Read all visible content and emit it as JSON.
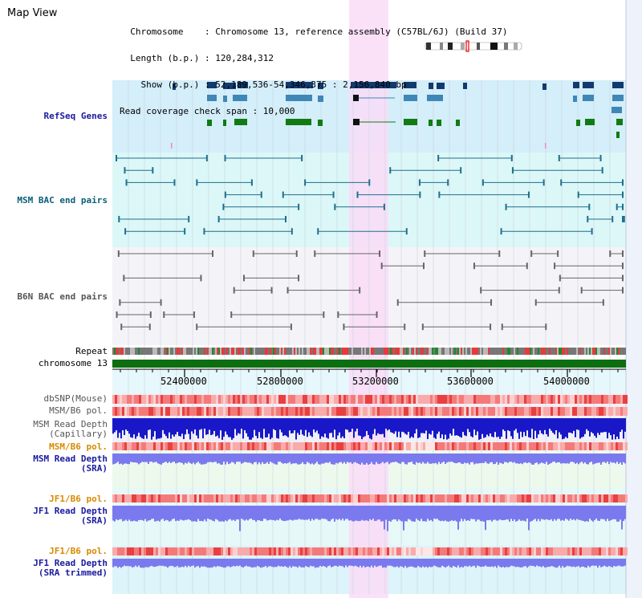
{
  "view": {
    "title": "Map View",
    "info_lines": [
      "  Chromosome    : Chromosome 13, reference assembly (C57BL/6J) (Build 37)",
      "  Length (b.p.) : 120,284,312",
      "    Show (b.p.) : 52,189,536-54,346,375 : 2,156,840 bp",
      "Read coverage check span : 10,000"
    ]
  },
  "tracks": {
    "refseq": "RefSeq Genes",
    "msm_bac": "MSM BAC end pairs",
    "b6n_bac": "B6N BAC end pairs",
    "repeat": "Repeat",
    "chromosome": "chromosome 13",
    "dbsnp": "dbSNP(Mouse)",
    "msm_b6_pol_1": "MSM/B6 pol.",
    "msm_depth_cap_1": "MSM Read Depth",
    "msm_depth_cap_2": "(Capillary)",
    "msm_b6_pol_2": "MSM/B6 pol.",
    "msm_depth_sra_1": "MSM Read Depth",
    "msm_depth_sra_2": "(SRA)",
    "jf1_b6_pol_1": "JF1/B6 pol.",
    "jf1_depth_sra_1": "JF1 Read Depth",
    "jf1_depth_sra_2": "(SRA)",
    "jf1_b6_pol_2": "JF1/B6 pol.",
    "jf1_depth_trim_1": "JF1 Read Depth",
    "jf1_depth_trim_2": "(SRA trimmed)"
  },
  "axis": {
    "ticks": [
      "52400000",
      "52800000",
      "53200000",
      "53600000",
      "54000000"
    ]
  },
  "colors": {
    "refseq_bg": "#d4eefa",
    "msm_bac_bg": "#dcf7f7",
    "b6n_bac_bg": "#f4f4f8",
    "highlight": "#f9dcf7",
    "gene_dark": "#123a6e",
    "gene_mid": "#3f87b6",
    "gene_green": "#117a14",
    "msm_bac": "#1f6f8e",
    "b6n_bac": "#666666",
    "chromosome": "#0c6e10",
    "label_blue": "#1a1aa0",
    "label_teal": "#0a5f7a",
    "label_gray": "#555555",
    "label_orange": "#d88a00",
    "depth_dark_blue": "#1818c8",
    "depth_light_blue": "#7a7aee",
    "pol_red": "#ee5555"
  }
}
